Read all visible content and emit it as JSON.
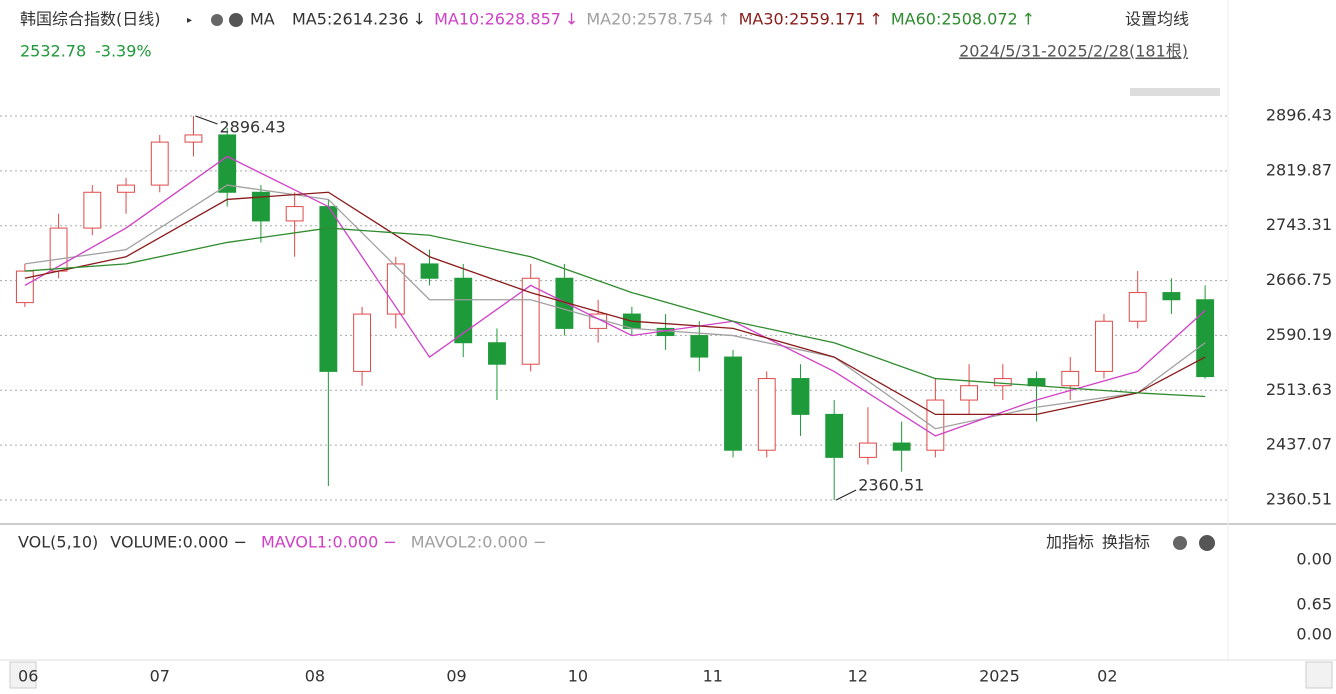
{
  "chart_data": {
    "type": "candlestick",
    "title": "韩国综合指数(日线)",
    "ma_label": "MA",
    "ma_legend": [
      {
        "label": "MA5:2614.236",
        "arrow": "↓",
        "color": "#333333"
      },
      {
        "label": "MA10:2628.857",
        "arrow": "↓",
        "color": "#d040c8"
      },
      {
        "label": "MA20:2578.754",
        "arrow": "↑",
        "color": "#a0a0a0"
      },
      {
        "label": "MA30:2559.171",
        "arrow": "↑",
        "color": "#8b1a1a"
      },
      {
        "label": "MA60:2508.072",
        "arrow": "↑",
        "color": "#2e8b2e"
      }
    ],
    "settings_label": "设置均线",
    "price": "2532.78",
    "change": "-3.39%",
    "range_label": "2024/5/31-2025/2/28(181根)",
    "annotations": [
      {
        "text": "2896.43"
      },
      {
        "text": "2360.51"
      }
    ],
    "up_color": "#e04848",
    "down_color": "#1f9a3a",
    "open": [
      2636,
      2680,
      2740,
      2790,
      2800,
      2860,
      2870,
      2790,
      2750,
      2770,
      2540,
      2620,
      2690,
      2670,
      2580,
      2550,
      2670,
      2600,
      2620,
      2600,
      2590,
      2560,
      2430,
      2530,
      2480,
      2420,
      2440,
      2430,
      2500,
      2520,
      2530,
      2520,
      2540,
      2610,
      2650,
      2640
    ],
    "high": [
      2690,
      2760,
      2800,
      2810,
      2870,
      2896.43,
      2880,
      2800,
      2790,
      2780,
      2630,
      2700,
      2710,
      2690,
      2600,
      2690,
      2690,
      2640,
      2630,
      2620,
      2610,
      2570,
      2540,
      2550,
      2500,
      2490,
      2470,
      2530,
      2550,
      2550,
      2540,
      2560,
      2620,
      2680,
      2670,
      2660
    ],
    "low": [
      2630,
      2670,
      2730,
      2760,
      2790,
      2840,
      2770,
      2720,
      2700,
      2380,
      2520,
      2600,
      2660,
      2560,
      2500,
      2540,
      2590,
      2580,
      2590,
      2570,
      2540,
      2420,
      2420,
      2450,
      2360.51,
      2410,
      2400,
      2420,
      2480,
      2500,
      2470,
      2500,
      2530,
      2600,
      2620,
      2530
    ],
    "close": [
      2680,
      2740,
      2790,
      2800,
      2860,
      2870,
      2790,
      2750,
      2770,
      2540,
      2620,
      2690,
      2670,
      2580,
      2550,
      2670,
      2600,
      2620,
      2600,
      2590,
      2560,
      2430,
      2530,
      2480,
      2420,
      2440,
      2430,
      2500,
      2520,
      2530,
      2520,
      2540,
      2610,
      2650,
      2640,
      2532.78
    ],
    "lines": [
      {
        "color": "#a0a0a0",
        "x": [
          0,
          3,
          6,
          9,
          12,
          15,
          18,
          21,
          24,
          27,
          30,
          33,
          35
        ],
        "values": [
          2690,
          2710,
          2800,
          2780,
          2640,
          2640,
          2600,
          2590,
          2560,
          2460,
          2490,
          2510,
          2580
        ]
      },
      {
        "color": "#d040c8",
        "x": [
          0,
          3,
          6,
          9,
          12,
          15,
          18,
          21,
          24,
          27,
          30,
          33,
          35
        ],
        "values": [
          2660,
          2740,
          2840,
          2770,
          2560,
          2660,
          2590,
          2610,
          2540,
          2450,
          2500,
          2540,
          2625
        ]
      },
      {
        "color": "#8b1a1a",
        "x": [
          0,
          3,
          6,
          9,
          12,
          15,
          18,
          21,
          24,
          27,
          30,
          33,
          35
        ],
        "values": [
          2670,
          2700,
          2780,
          2790,
          2700,
          2650,
          2610,
          2600,
          2560,
          2480,
          2480,
          2510,
          2560
        ]
      },
      {
        "color": "#2e8b2e",
        "x": [
          0,
          3,
          6,
          9,
          12,
          15,
          18,
          21,
          24,
          27,
          30,
          33,
          35
        ],
        "values": [
          2680,
          2690,
          2720,
          2740,
          2730,
          2700,
          2650,
          2610,
          2580,
          2530,
          2520,
          2510,
          2505
        ]
      }
    ],
    "ylim": [
      2332.6,
      2939.7
    ],
    "yticks": [
      {
        "value": 2360.51,
        "label": "2360.51"
      },
      {
        "value": 2437.07,
        "label": "2437.07"
      },
      {
        "value": 2513.63,
        "label": "2513.63"
      },
      {
        "value": 2590.19,
        "label": "2590.19"
      },
      {
        "value": 2666.75,
        "label": "2666.75"
      },
      {
        "value": 2743.31,
        "label": "2743.31"
      },
      {
        "value": 2819.87,
        "label": "2819.87"
      },
      {
        "value": 2896.43,
        "label": "2896.43"
      }
    ],
    "xlim": [
      -0.5,
      35.5
    ],
    "xticks": [
      {
        "value": 0.1,
        "label": "06"
      },
      {
        "value": 4.0,
        "label": "07"
      },
      {
        "value": 8.6,
        "label": "08"
      },
      {
        "value": 12.8,
        "label": "09"
      },
      {
        "value": 16.4,
        "label": "10"
      },
      {
        "value": 20.4,
        "label": "11"
      },
      {
        "value": 24.7,
        "label": "12"
      },
      {
        "value": 28.9,
        "label": "2025"
      },
      {
        "value": 32.1,
        "label": "02"
      }
    ],
    "volume": {
      "title": "VOL(5,10)",
      "legend": [
        {
          "label": "VOLUME:0.000 −",
          "color": "#333333"
        },
        {
          "label": "MAVOL1:0.000 −",
          "color": "#d040c8"
        },
        {
          "label": "MAVOL2:0.000 −",
          "color": "#a0a0a0"
        }
      ],
      "buttons": [
        "加指标",
        "换指标"
      ],
      "axis_labels": [
        "0.00",
        "0.65",
        "0.00"
      ]
    }
  }
}
